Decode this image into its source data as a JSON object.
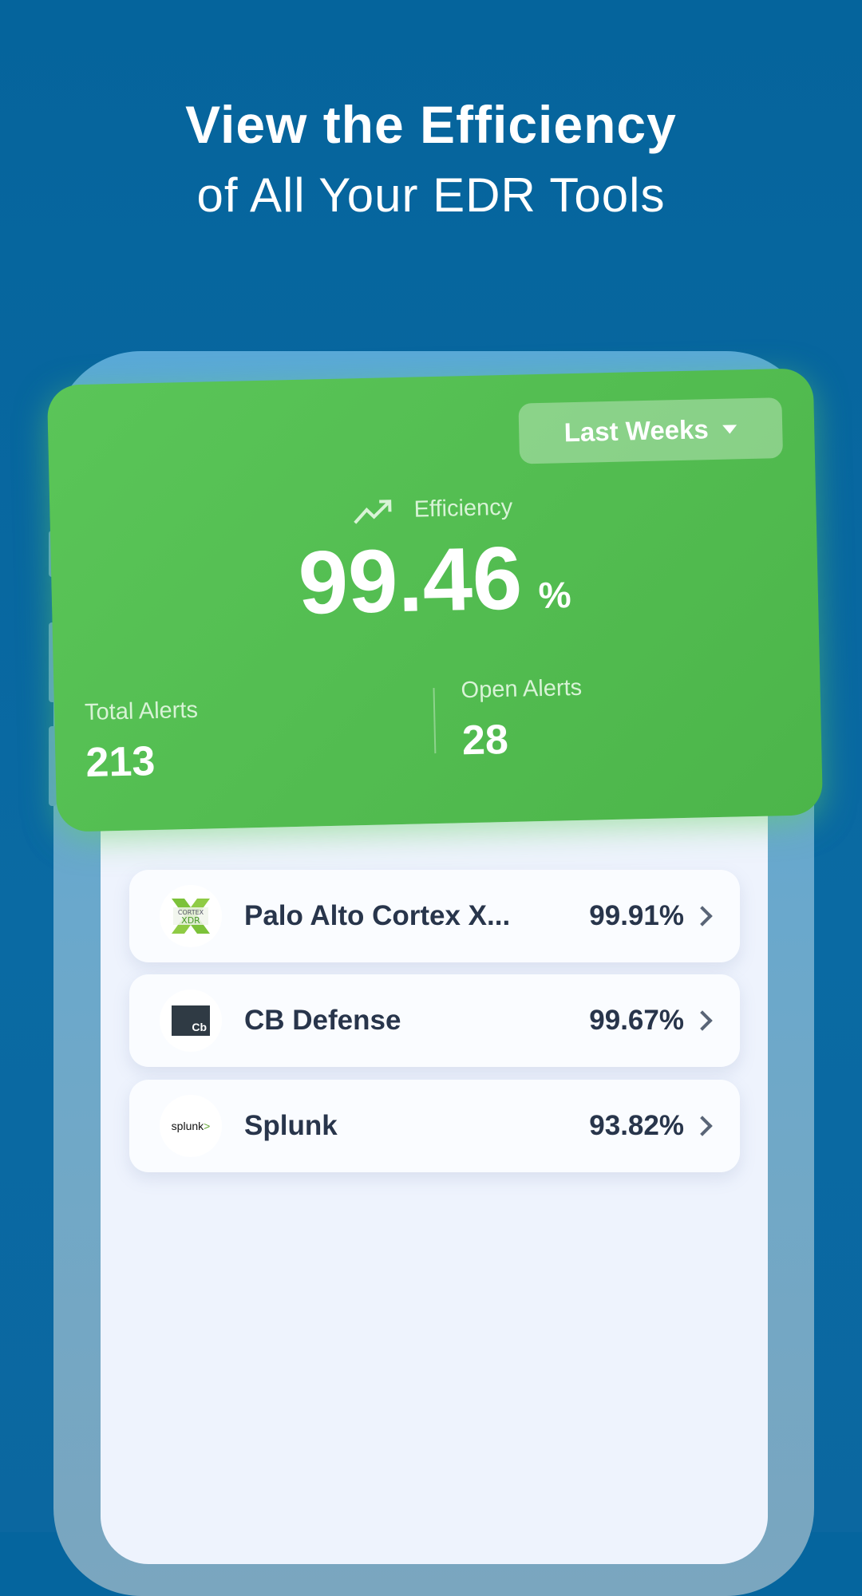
{
  "headline": {
    "line1": "View the Efficiency",
    "line2": "of All Your EDR Tools"
  },
  "card": {
    "period_selector": "Last Weeks",
    "efficiency_label": "Efficiency",
    "efficiency_value": "99.46",
    "efficiency_unit": "%",
    "total_alerts_label": "Total Alerts",
    "total_alerts": "213",
    "open_alerts_label": "Open Alerts",
    "open_alerts": "28",
    "color": "#52bd50"
  },
  "tools": [
    {
      "name": "Palo Alto Cortex X...",
      "efficiency": "99.91%",
      "logo_text": "CORTEX XDR"
    },
    {
      "name": "CB Defense",
      "efficiency": "99.67%",
      "logo_text": "Cb"
    },
    {
      "name": "Splunk",
      "efficiency": "93.82%",
      "logo_text": "splunk>"
    }
  ]
}
